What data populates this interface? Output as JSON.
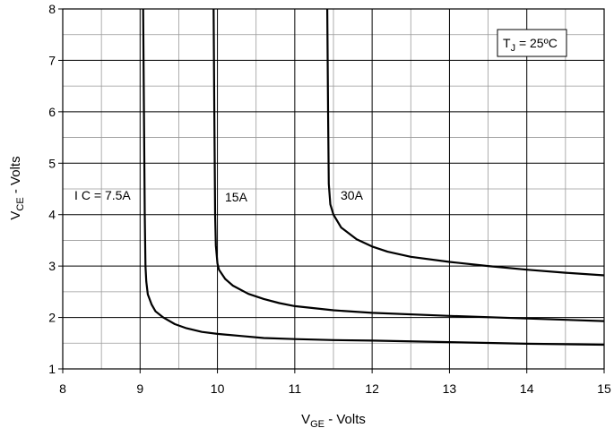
{
  "chart_data": {
    "type": "line",
    "xlabel": {
      "main": "V",
      "sub": "GE",
      "rest": " - Volts"
    },
    "ylabel": {
      "main": "V",
      "sub": "CE",
      "rest": " - Volts"
    },
    "xlim": [
      8,
      15
    ],
    "ylim": [
      1,
      8
    ],
    "xticks": [
      "8",
      "9",
      "10",
      "11",
      "12",
      "13",
      "14",
      "15"
    ],
    "yticks": [
      "1",
      "2",
      "3",
      "4",
      "5",
      "6",
      "7",
      "8"
    ],
    "grid": true,
    "condition": {
      "main": "T",
      "sub": "J",
      "rest": " = 25ºC"
    },
    "series_labels": {
      "s1": {
        "main": "I",
        "sub": "C",
        "rest": " = 7.5A"
      },
      "s2": "15A",
      "s3": "30A"
    },
    "series": [
      {
        "id": "s1",
        "points": [
          [
            9.04,
            8.0
          ],
          [
            9.05,
            6.0
          ],
          [
            9.06,
            4.0
          ],
          [
            9.07,
            3.0
          ],
          [
            9.08,
            2.7
          ],
          [
            9.1,
            2.45
          ],
          [
            9.15,
            2.25
          ],
          [
            9.2,
            2.12
          ],
          [
            9.3,
            2.0
          ],
          [
            9.45,
            1.87
          ],
          [
            9.6,
            1.79
          ],
          [
            9.8,
            1.72
          ],
          [
            10.0,
            1.68
          ],
          [
            10.3,
            1.64
          ],
          [
            10.6,
            1.6
          ],
          [
            11.0,
            1.58
          ],
          [
            11.5,
            1.56
          ],
          [
            12.0,
            1.55
          ],
          [
            13.0,
            1.52
          ],
          [
            14.0,
            1.49
          ],
          [
            15.0,
            1.47
          ]
        ]
      },
      {
        "id": "s2",
        "points": [
          [
            9.95,
            8.0
          ],
          [
            9.96,
            6.0
          ],
          [
            9.97,
            4.0
          ],
          [
            9.98,
            3.4
          ],
          [
            10.0,
            3.05
          ],
          [
            10.02,
            2.93
          ],
          [
            10.1,
            2.75
          ],
          [
            10.2,
            2.62
          ],
          [
            10.4,
            2.46
          ],
          [
            10.6,
            2.36
          ],
          [
            10.8,
            2.28
          ],
          [
            11.0,
            2.22
          ],
          [
            11.5,
            2.14
          ],
          [
            12.0,
            2.09
          ],
          [
            13.0,
            2.03
          ],
          [
            14.0,
            1.98
          ],
          [
            15.0,
            1.93
          ]
        ]
      },
      {
        "id": "s3",
        "points": [
          [
            11.42,
            8.0
          ],
          [
            11.43,
            6.0
          ],
          [
            11.44,
            4.6
          ],
          [
            11.46,
            4.2
          ],
          [
            11.5,
            4.0
          ],
          [
            11.6,
            3.75
          ],
          [
            11.8,
            3.52
          ],
          [
            12.0,
            3.38
          ],
          [
            12.2,
            3.28
          ],
          [
            12.5,
            3.18
          ],
          [
            13.0,
            3.08
          ],
          [
            13.5,
            3.0
          ],
          [
            14.0,
            2.93
          ],
          [
            14.5,
            2.87
          ],
          [
            15.0,
            2.82
          ]
        ]
      }
    ]
  }
}
